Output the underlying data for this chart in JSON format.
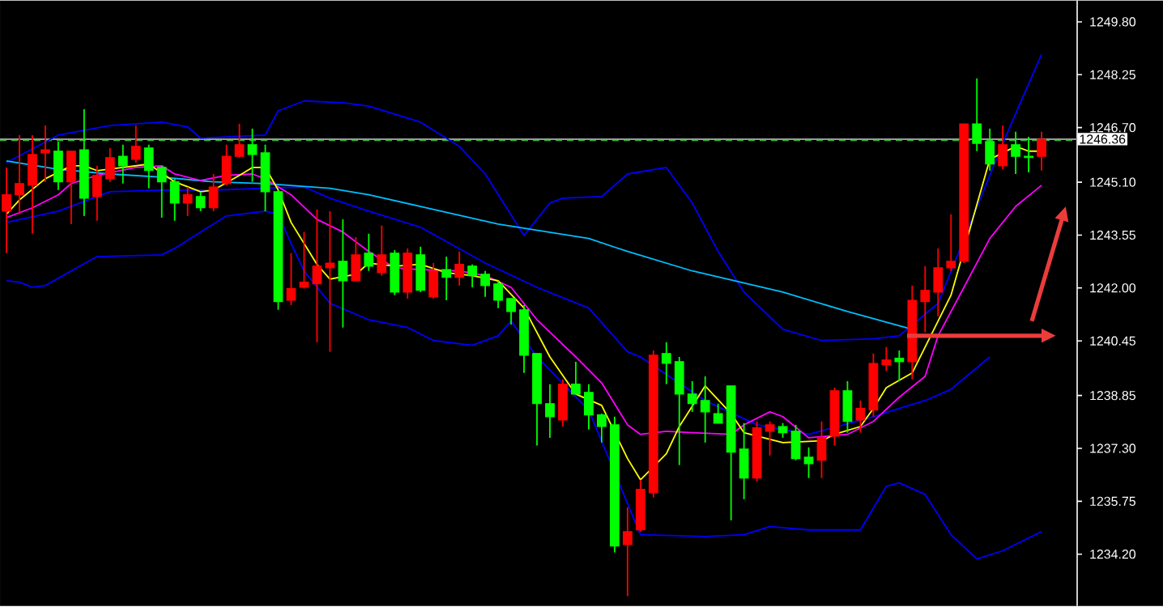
{
  "chart_data": {
    "type": "candlestick",
    "categories": [
      null,
      null,
      null,
      null,
      null,
      null,
      null,
      null,
      null,
      null,
      null,
      null,
      null,
      null,
      null,
      null,
      null,
      null,
      null,
      null,
      null,
      null,
      null,
      null,
      null,
      null,
      null,
      null,
      null,
      null,
      null,
      null,
      null,
      null,
      null,
      null,
      null,
      null,
      null,
      null,
      null,
      null,
      null,
      null,
      null,
      null,
      null,
      null,
      null,
      null,
      null,
      null,
      null,
      null,
      null,
      null,
      null,
      null,
      null,
      null,
      null,
      null,
      null,
      null,
      null,
      null,
      null,
      null,
      null,
      null,
      null,
      null,
      null,
      null,
      null,
      null,
      null,
      null,
      null,
      null,
      null
    ],
    "ohlc": [
      [
        1244.25,
        1245.53,
        1243.02,
        1244.73
      ],
      [
        1244.73,
        1246.48,
        1244.16,
        1245.06
      ],
      [
        1245.01,
        1246.48,
        1243.59,
        1245.91
      ],
      [
        1245.96,
        1246.76,
        1245.11,
        1246.05
      ],
      [
        1246.01,
        1246.29,
        1244.87,
        1245.11
      ],
      [
        1245.11,
        1246.01,
        1243.87,
        1246.01
      ],
      [
        1246.05,
        1247.24,
        1244.11,
        1244.63
      ],
      [
        1244.68,
        1245.58,
        1243.97,
        1245.3
      ],
      [
        1245.2,
        1246.1,
        1245.11,
        1245.82
      ],
      [
        1245.86,
        1246.2,
        1245.06,
        1245.58
      ],
      [
        1245.77,
        1246.76,
        1245.67,
        1246.15
      ],
      [
        1246.1,
        1246.2,
        1244.92,
        1245.44
      ],
      [
        1245.53,
        1245.58,
        1244.06,
        1245.11
      ],
      [
        1245.11,
        1245.2,
        1243.97,
        1244.49
      ],
      [
        1244.49,
        1244.96,
        1244.11,
        1244.73
      ],
      [
        1244.68,
        1244.82,
        1244.25,
        1244.35
      ],
      [
        1244.35,
        1245.34,
        1244.25,
        1244.96
      ],
      [
        1245.06,
        1246.2,
        1245.01,
        1245.86
      ],
      [
        1245.86,
        1246.81,
        1245.82,
        1246.2
      ],
      [
        1246.2,
        1246.67,
        1245.11,
        1245.91
      ],
      [
        1245.96,
        1246.2,
        1244.25,
        1244.82
      ],
      [
        1244.82,
        1244.87,
        1241.36,
        1241.6
      ],
      [
        1241.64,
        1243.02,
        1241.5,
        1241.98
      ],
      [
        1242.02,
        1243.64,
        1241.98,
        1242.17
      ],
      [
        1242.12,
        1244.3,
        1240.41,
        1242.64
      ],
      [
        1242.59,
        1244.25,
        1240.13,
        1242.73
      ],
      [
        1242.78,
        1244.01,
        1240.84,
        1242.21
      ],
      [
        1242.21,
        1243.49,
        1242.21,
        1242.97
      ],
      [
        1243.02,
        1243.59,
        1242.5,
        1242.64
      ],
      [
        1242.45,
        1243.83,
        1242.36,
        1242.97
      ],
      [
        1243.02,
        1243.11,
        1241.79,
        1241.88
      ],
      [
        1241.88,
        1243.16,
        1241.69,
        1243.02
      ],
      [
        1242.97,
        1243.21,
        1241.88,
        1241.93
      ],
      [
        1241.74,
        1242.73,
        1241.69,
        1242.5
      ],
      [
        1242.54,
        1242.92,
        1241.64,
        1242.31
      ],
      [
        1242.31,
        1243.07,
        1242.07,
        1242.69
      ],
      [
        1242.64,
        1242.69,
        1242.02,
        1242.36
      ],
      [
        1242.4,
        1242.5,
        1241.74,
        1242.07
      ],
      [
        1242.12,
        1242.21,
        1241.41,
        1241.64
      ],
      [
        1241.69,
        1241.69,
        1240.93,
        1241.31
      ],
      [
        1241.36,
        1241.5,
        1239.51,
        1240.03
      ],
      [
        1240.08,
        1240.08,
        1237.38,
        1238.61
      ],
      [
        1238.61,
        1239.18,
        1237.61,
        1238.23
      ],
      [
        1238.13,
        1239.32,
        1237.94,
        1239.18
      ],
      [
        1239.18,
        1239.84,
        1238.89,
        1238.89
      ],
      [
        1238.94,
        1239.18,
        1237.85,
        1238.28
      ],
      [
        1238.28,
        1238.32,
        1237.47,
        1237.94
      ],
      [
        1237.99,
        1238.23,
        1234.25,
        1234.44
      ],
      [
        1234.48,
        1235.57,
        1232.97,
        1234.86
      ],
      [
        1234.91,
        1236.38,
        1234.86,
        1236.1
      ],
      [
        1236.0,
        1240.17,
        1235.86,
        1240.03
      ],
      [
        1240.08,
        1240.41,
        1239.18,
        1239.79
      ],
      [
        1239.84,
        1239.98,
        1236.81,
        1238.89
      ],
      [
        1238.89,
        1239.27,
        1238.37,
        1238.61
      ],
      [
        1238.7,
        1239.41,
        1237.47,
        1238.37
      ],
      [
        1238.32,
        1238.61,
        1238.04,
        1238.04
      ],
      [
        1239.13,
        1239.13,
        1235.19,
        1237.19
      ],
      [
        1237.28,
        1238.04,
        1235.81,
        1236.43
      ],
      [
        1236.43,
        1238.09,
        1236.33,
        1237.9
      ],
      [
        1237.8,
        1238.09,
        1237.09,
        1237.99
      ],
      [
        1237.94,
        1238.04,
        1237.61,
        1237.76
      ],
      [
        1237.8,
        1237.99,
        1236.95,
        1237.0
      ],
      [
        1237.04,
        1237.33,
        1236.43,
        1236.85
      ],
      [
        1236.95,
        1238.09,
        1236.43,
        1237.61
      ],
      [
        1237.66,
        1239.08,
        1237.38,
        1238.99
      ],
      [
        1238.99,
        1239.27,
        1237.76,
        1238.09
      ],
      [
        1238.13,
        1238.7,
        1237.76,
        1238.47
      ],
      [
        1238.42,
        1240.08,
        1238.23,
        1239.79
      ],
      [
        1239.75,
        1240.27,
        1239.56,
        1239.89
      ],
      [
        1239.94,
        1240.17,
        1239.27,
        1239.84
      ],
      [
        1239.84,
        1242.07,
        1239.32,
        1241.64
      ],
      [
        1241.6,
        1242.64,
        1240.7,
        1241.93
      ],
      [
        1241.88,
        1243.16,
        1241.17,
        1242.59
      ],
      [
        1242.59,
        1244.16,
        1242.5,
        1242.78
      ],
      [
        1242.78,
        1246.81,
        1242.73,
        1246.81
      ],
      [
        1246.81,
        1248.14,
        1246.01,
        1246.24
      ],
      [
        1246.29,
        1246.67,
        1245.44,
        1245.63
      ],
      [
        1245.58,
        1246.76,
        1245.48,
        1246.2
      ],
      [
        1246.2,
        1246.58,
        1245.34,
        1245.86
      ],
      [
        1245.86,
        1246.43,
        1245.39,
        1245.82
      ],
      [
        1245.86,
        1246.58,
        1245.44,
        1246.36
      ]
    ],
    "colors": [
      "#ff0000",
      "#ff0000",
      "#ff0000",
      "#ff0000",
      "#00ff00",
      "#ff0000",
      "#00ff00",
      "#ff0000",
      "#ff0000",
      "#00ff00",
      "#ff0000",
      "#00ff00",
      "#00ff00",
      "#00ff00",
      "#ff0000",
      "#00ff00",
      "#ff0000",
      "#ff0000",
      "#ff0000",
      "#00ff00",
      "#00ff00",
      "#00ff00",
      "#ff0000",
      "#ff0000",
      "#ff0000",
      "#ff0000",
      "#00ff00",
      "#ff0000",
      "#00ff00",
      "#ff0000",
      "#00ff00",
      "#ff0000",
      "#00ff00",
      "#ff0000",
      "#00ff00",
      "#ff0000",
      "#00ff00",
      "#00ff00",
      "#00ff00",
      "#00ff00",
      "#00ff00",
      "#00ff00",
      "#00ff00",
      "#ff0000",
      "#00ff00",
      "#00ff00",
      "#00ff00",
      "#00ff00",
      "#ff0000",
      "#ff0000",
      "#ff0000",
      "#00ff00",
      "#00ff00",
      "#00ff00",
      "#00ff00",
      "#00ff00",
      "#00ff00",
      "#00ff00",
      "#ff0000",
      "#ff0000",
      "#00ff00",
      "#00ff00",
      "#00ff00",
      "#ff0000",
      "#ff0000",
      "#00ff00",
      "#ff0000",
      "#ff0000",
      "#ff0000",
      "#00ff00",
      "#ff0000",
      "#ff0000",
      "#ff0000",
      "#ff0000",
      "#ff0000",
      "#00ff00",
      "#00ff00",
      "#ff0000",
      "#00ff00",
      "#00ff00",
      "#ff0000"
    ],
    "series": [
      {
        "type": "line",
        "color": "#0000ff",
        "values": [
          1245.67,
          null,
          null,
          null,
          1246.48,
          null,
          null,
          null,
          1246.76,
          null,
          null,
          null,
          1246.86,
          null,
          1246.72,
          1246.39,
          null,
          null,
          null,
          null,
          1246.48,
          1247.19,
          null,
          1247.48,
          null,
          null,
          1247.43,
          null,
          1247.33,
          null,
          null,
          null,
          1246.86,
          null,
          null,
          1246.15,
          null,
          1245.34,
          null,
          null,
          1243.54,
          null,
          1244.49,
          1244.63,
          null,
          null,
          1244.68,
          null,
          1245.34,
          null,
          null,
          1245.53,
          null,
          1244.49,
          null,
          1243.07,
          null,
          1241.88,
          null,
          null,
          1240.79,
          null,
          null,
          1240.46,
          null,
          null,
          null,
          1240.51,
          null,
          1240.6,
          null,
          null,
          1241.55,
          null,
          null,
          null,
          null,
          1246.24,
          null,
          null,
          1248.85
        ]
      },
      {
        "type": "line",
        "color": "#0000ff",
        "values": [
          1243.92,
          null,
          null,
          null,
          1244.25,
          null,
          null,
          null,
          1244.82,
          null,
          null,
          null,
          1244.87,
          null,
          null,
          null,
          1244.87,
          null,
          null,
          null,
          null,
          null,
          null,
          1244.96,
          null,
          1244.63,
          null,
          null,
          1244.25,
          null,
          null,
          null,
          1243.78,
          null,
          null,
          null,
          null,
          1242.73,
          null,
          null,
          null,
          1242.02,
          null,
          null,
          null,
          1241.41,
          null,
          null,
          1240.13,
          1239.98,
          null,
          null,
          null,
          null,
          1238.7,
          null,
          null,
          null,
          1237.99,
          null,
          null,
          null,
          1237.71,
          null,
          null,
          null,
          null,
          1238.23,
          null,
          1238.47,
          null,
          1238.7,
          null,
          1239.03,
          null,
          null,
          1239.98,
          null,
          null,
          null,
          null
        ]
      },
      {
        "type": "line",
        "color": "#0000ff",
        "values": [
          1242.21,
          1242.17,
          1242.02,
          1242.07,
          null,
          1242.5,
          null,
          1242.92,
          null,
          null,
          null,
          null,
          1242.97,
          1243.16,
          null,
          1243.64,
          null,
          1244.11,
          null,
          null,
          1244.25,
          1244.16,
          1243.3,
          1242.5,
          null,
          1241.55,
          null,
          null,
          1241.07,
          null,
          null,
          1240.84,
          null,
          1240.46,
          null,
          null,
          1240.32,
          null,
          1240.6,
          1241.03,
          null,
          1239.98,
          null,
          null,
          null,
          1238.42,
          null,
          null,
          null,
          1234.77,
          null,
          null,
          null,
          null,
          1234.72,
          null,
          null,
          1234.77,
          null,
          1235.01,
          null,
          null,
          1234.91,
          null,
          null,
          null,
          1234.91,
          null,
          1236.19,
          1236.29,
          null,
          1235.95,
          null,
          1234.77,
          null,
          1234.06,
          null,
          1234.3,
          null,
          null,
          1234.86
        ]
      },
      {
        "type": "line",
        "color": "#00bfff",
        "values": [
          1245.72,
          null,
          null,
          null,
          1245.48,
          null,
          null,
          null,
          1245.34,
          null,
          null,
          null,
          1245.25,
          null,
          null,
          null,
          1245.11,
          null,
          null,
          null,
          1245.06,
          null,
          null,
          null,
          null,
          1244.92,
          null,
          null,
          1244.73,
          null,
          null,
          null,
          1244.39,
          null,
          null,
          null,
          null,
          null,
          1243.87,
          null,
          null,
          null,
          null,
          null,
          null,
          1243.45,
          null,
          null,
          1243.07,
          null,
          null,
          null,
          null,
          1242.5,
          null,
          null,
          null,
          null,
          null,
          null,
          1241.88,
          null,
          null,
          null,
          null,
          1241.31,
          null,
          null,
          null,
          null,
          1240.79,
          null,
          null,
          null,
          null,
          null,
          null,
          null,
          null,
          null,
          null
        ]
      },
      {
        "type": "line",
        "color": "#ff00ff",
        "values": [
          1244.06,
          null,
          1244.35,
          null,
          1244.73,
          1245.06,
          null,
          1245.3,
          null,
          null,
          1245.53,
          null,
          1245.58,
          1245.34,
          null,
          1245.15,
          null,
          1245.3,
          null,
          1245.34,
          1245.2,
          null,
          1244.73,
          null,
          1244.01,
          null,
          1243.64,
          null,
          1243.07,
          null,
          1242.59,
          null,
          1242.54,
          null,
          null,
          1242.5,
          null,
          1242.36,
          null,
          1242.02,
          null,
          1241.07,
          null,
          null,
          1239.98,
          null,
          1239.22,
          null,
          1237.99,
          1237.71,
          null,
          1237.8,
          null,
          1237.76,
          null,
          null,
          1237.71,
          1237.99,
          null,
          1238.37,
          1238.23,
          null,
          1237.61,
          null,
          null,
          1237.71,
          null,
          1238.09,
          null,
          1238.8,
          null,
          1239.41,
          1240.6,
          null,
          1242.02,
          null,
          1243.45,
          null,
          1244.39,
          null,
          1245.01
        ]
      },
      {
        "type": "line",
        "color": "#ffff00",
        "values": [
          1244.16,
          1244.58,
          null,
          1245.2,
          null,
          1245.58,
          1245.58,
          1245.44,
          null,
          1245.53,
          null,
          1245.63,
          null,
          1245.11,
          null,
          1244.82,
          1244.87,
          null,
          1245.3,
          1245.53,
          1245.53,
          1244.87,
          1243.92,
          null,
          1242.69,
          1242.26,
          null,
          1242.4,
          1242.73,
          null,
          1242.64,
          null,
          1242.69,
          null,
          1242.45,
          null,
          1242.36,
          null,
          1242.21,
          null,
          1241.41,
          null,
          1239.98,
          null,
          1238.89,
          null,
          1238.56,
          null,
          1237.0,
          1236.38,
          null,
          1237.14,
          1237.94,
          null,
          1239.13,
          null,
          1238.32,
          1237.76,
          null,
          null,
          1237.47,
          null,
          null,
          1237.52,
          1237.71,
          null,
          1237.94,
          1238.47,
          1239.08,
          null,
          1239.51,
          null,
          null,
          1241.79,
          null,
          null,
          1245.77,
          null,
          1246.15,
          1246.01,
          1246.01
        ]
      }
    ],
    "ref_lines": [
      {
        "axis": "y",
        "value": 1246.33,
        "color": "#2db82d",
        "line_style": "dashed"
      },
      {
        "axis": "y",
        "value": 1246.36,
        "label": "1246.36",
        "color": "#9a9a9a"
      }
    ],
    "ylim": [
      1232.68,
      1250.42
    ],
    "yticks": [
      {
        "value": 1249.8,
        "label": "1249.80"
      },
      {
        "value": 1248.25,
        "label": "1248.25"
      },
      {
        "value": 1246.7,
        "label": "1246.70"
      },
      {
        "value": 1245.1,
        "label": "1245.10"
      },
      {
        "value": 1243.55,
        "label": "1243.55"
      },
      {
        "value": 1242.0,
        "label": "1242.00"
      },
      {
        "value": 1240.45,
        "label": "1240.45"
      },
      {
        "value": 1238.85,
        "label": "1238.85"
      },
      {
        "value": 1237.3,
        "label": "1237.30"
      },
      {
        "value": 1235.75,
        "label": "1235.75"
      },
      {
        "value": 1234.2,
        "label": "1234.20"
      }
    ],
    "tick_labels": "y"
  }
}
